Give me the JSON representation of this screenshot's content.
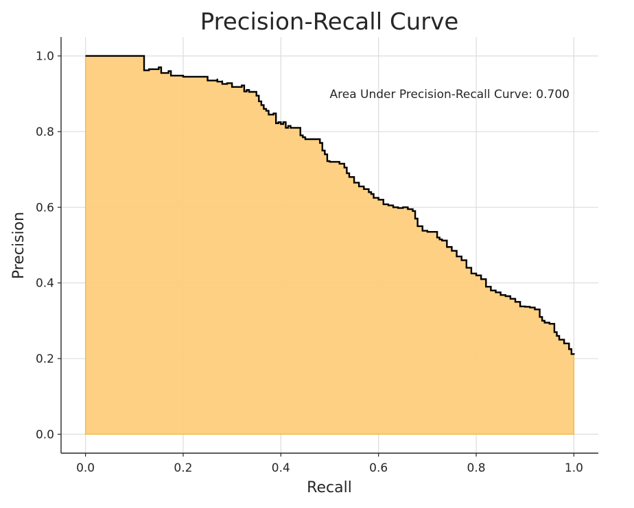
{
  "chart_data": {
    "type": "area",
    "title": "Precision-Recall Curve",
    "xlabel": "Recall",
    "ylabel": "Precision",
    "xlim": [
      -0.05,
      1.05
    ],
    "ylim": [
      -0.05,
      1.05
    ],
    "x_ticks": [
      "0.0",
      "0.2",
      "0.4",
      "0.6",
      "0.8",
      "1.0"
    ],
    "x_tick_values": [
      0.0,
      0.2,
      0.4,
      0.6,
      0.8,
      1.0
    ],
    "y_ticks": [
      "0.0",
      "0.2",
      "0.4",
      "0.6",
      "0.8",
      "1.0"
    ],
    "y_tick_values": [
      0.0,
      0.2,
      0.4,
      0.6,
      0.8,
      1.0
    ],
    "grid": true,
    "annotation": {
      "text": "Area Under Precision-Recall Curve: 0.700",
      "x": 0.5,
      "y": 0.9
    },
    "colors": {
      "fill": "#fdcd7c",
      "fill_edge": "#f5b53a",
      "line": "#000000"
    },
    "series": [
      {
        "x": [
          0.0,
          0.12,
          0.12,
          0.13,
          0.15,
          0.155,
          0.155,
          0.17,
          0.175,
          0.175,
          0.2,
          0.25,
          0.27,
          0.27,
          0.28,
          0.28,
          0.29,
          0.3,
          0.3,
          0.32,
          0.325,
          0.325,
          0.33,
          0.335,
          0.34,
          0.35,
          0.355,
          0.36,
          0.365,
          0.37,
          0.375,
          0.38,
          0.385,
          0.39,
          0.395,
          0.4,
          0.405,
          0.41,
          0.415,
          0.42,
          0.43,
          0.44,
          0.445,
          0.45,
          0.46,
          0.47,
          0.48,
          0.485,
          0.49,
          0.495,
          0.5,
          0.51,
          0.52,
          0.53,
          0.535,
          0.54,
          0.55,
          0.56,
          0.57,
          0.58,
          0.585,
          0.59,
          0.6,
          0.61,
          0.62,
          0.63,
          0.64,
          0.65,
          0.66,
          0.67,
          0.675,
          0.68,
          0.69,
          0.7,
          0.71,
          0.72,
          0.725,
          0.73,
          0.74,
          0.75,
          0.76,
          0.77,
          0.78,
          0.79,
          0.8,
          0.81,
          0.82,
          0.83,
          0.84,
          0.85,
          0.86,
          0.87,
          0.88,
          0.89,
          0.9,
          0.91,
          0.92,
          0.93,
          0.935,
          0.94,
          0.95,
          0.96,
          0.965,
          0.97,
          0.98,
          0.99,
          0.995,
          1.0
        ],
        "y": [
          1.0,
          1.0,
          0.962,
          0.965,
          0.97,
          0.97,
          0.955,
          0.96,
          0.96,
          0.948,
          0.945,
          0.935,
          0.94,
          0.932,
          0.935,
          0.926,
          0.928,
          0.925,
          0.918,
          0.922,
          0.922,
          0.906,
          0.91,
          0.905,
          0.905,
          0.895,
          0.88,
          0.87,
          0.86,
          0.855,
          0.845,
          0.845,
          0.848,
          0.822,
          0.825,
          0.82,
          0.825,
          0.81,
          0.815,
          0.81,
          0.81,
          0.79,
          0.785,
          0.78,
          0.78,
          0.78,
          0.77,
          0.75,
          0.74,
          0.722,
          0.72,
          0.72,
          0.715,
          0.705,
          0.69,
          0.68,
          0.665,
          0.655,
          0.648,
          0.64,
          0.635,
          0.625,
          0.62,
          0.608,
          0.605,
          0.6,
          0.598,
          0.6,
          0.595,
          0.59,
          0.57,
          0.55,
          0.538,
          0.535,
          0.535,
          0.52,
          0.515,
          0.512,
          0.495,
          0.485,
          0.47,
          0.46,
          0.44,
          0.425,
          0.42,
          0.41,
          0.39,
          0.38,
          0.375,
          0.368,
          0.365,
          0.358,
          0.35,
          0.338,
          0.337,
          0.335,
          0.33,
          0.31,
          0.3,
          0.295,
          0.292,
          0.27,
          0.26,
          0.25,
          0.24,
          0.225,
          0.212,
          0.21
        ]
      }
    ]
  }
}
